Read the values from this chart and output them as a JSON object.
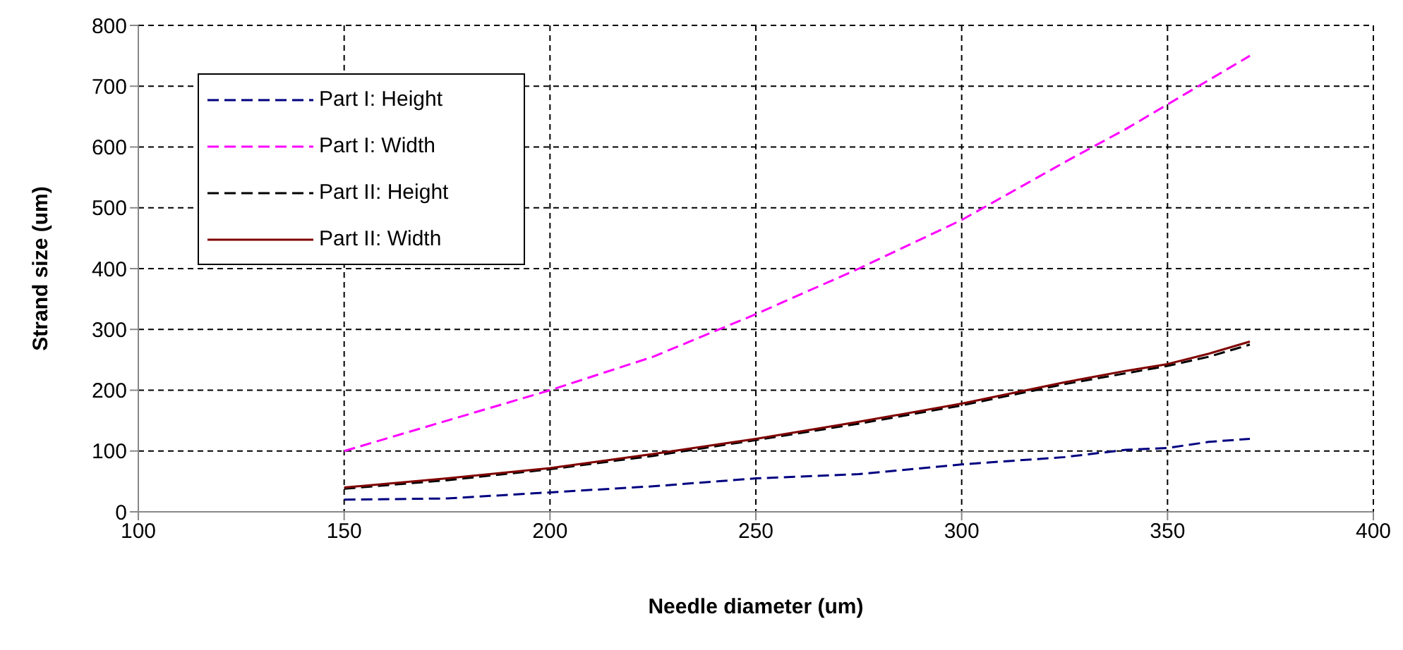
{
  "chart_data": {
    "type": "line",
    "xlabel": "Needle diameter (um)",
    "ylabel": "Strand size (um)",
    "x": [
      150,
      175,
      200,
      225,
      250,
      275,
      300,
      325,
      340,
      350,
      360,
      370
    ],
    "xlim": [
      100,
      400
    ],
    "xticks": [
      100,
      150,
      200,
      250,
      300,
      350,
      400
    ],
    "ylim": [
      0,
      800
    ],
    "yticks": [
      0,
      100,
      200,
      300,
      400,
      500,
      600,
      700,
      800
    ],
    "grid": true,
    "legend": "top left",
    "marker": "none",
    "series": [
      {
        "name": "Part I: Height",
        "color": "#000080",
        "line_style": "dashed",
        "values": [
          20,
          22,
          32,
          42,
          55,
          62,
          78,
          90,
          102,
          105,
          115,
          120
        ]
      },
      {
        "name": "Part I: Width",
        "color": "#ff00ff",
        "line_style": "dashed",
        "values": [
          100,
          150,
          200,
          255,
          325,
          400,
          480,
          575,
          630,
          670,
          710,
          750
        ]
      },
      {
        "name": "Part II: Height",
        "color": "#000000",
        "line_style": "dashed",
        "values": [
          38,
          52,
          70,
          92,
          118,
          145,
          175,
          210,
          228,
          240,
          255,
          275
        ]
      },
      {
        "name": "Part II: Width",
        "color": "#800000",
        "line_style": "solid",
        "values": [
          40,
          55,
          72,
          95,
          120,
          148,
          178,
          213,
          232,
          243,
          260,
          280
        ]
      }
    ]
  }
}
